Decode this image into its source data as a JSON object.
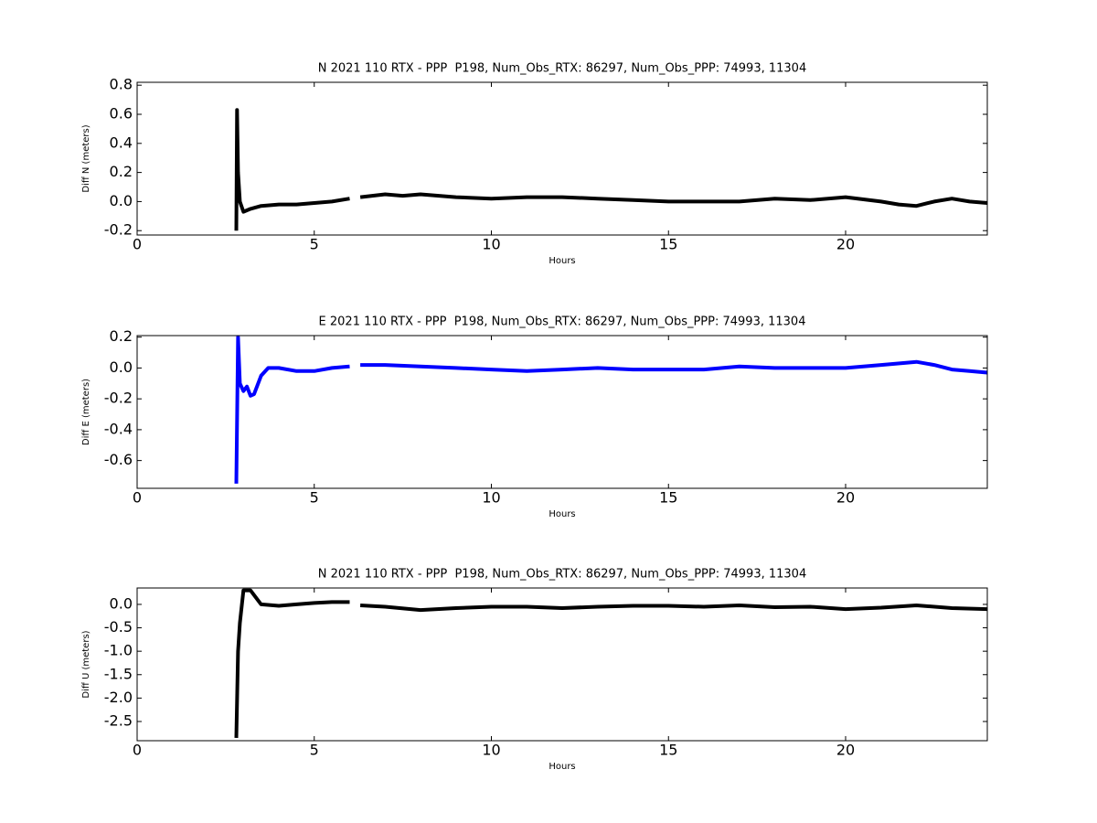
{
  "chart_data": [
    {
      "type": "line",
      "title": "N 2021 110 RTX - PPP  P198, Num_Obs_RTX: 86297, Num_Obs_PPP: 74993, 11304",
      "x_label": "Hours",
      "y_label": "Diff N (meters)",
      "color": "#000000",
      "x": [
        2.8,
        2.82,
        2.85,
        2.9,
        3.0,
        3.2,
        3.5,
        4,
        4.5,
        5,
        5.5,
        6.0,
        6.15,
        6.3,
        7,
        7.5,
        8,
        9,
        10,
        11,
        12,
        13,
        14,
        15,
        16,
        17,
        18,
        19,
        20,
        21,
        21.5,
        22,
        22.5,
        23,
        23.5,
        24
      ],
      "values": [
        -0.2,
        0.63,
        0.2,
        0.0,
        -0.07,
        -0.05,
        -0.03,
        -0.02,
        -0.02,
        -0.01,
        0.0,
        0.02,
        null,
        0.03,
        0.05,
        0.04,
        0.05,
        0.03,
        0.02,
        0.03,
        0.03,
        0.02,
        0.01,
        0.0,
        0.0,
        0.0,
        0.02,
        0.01,
        0.03,
        0.0,
        -0.02,
        -0.03,
        0.0,
        0.02,
        0.0,
        -0.01
      ],
      "xlim": [
        0,
        24
      ],
      "xticks": [
        0,
        5,
        10,
        15,
        20
      ],
      "ylim": [
        -0.23,
        0.82
      ],
      "yticks": [
        -0.2,
        {
          "value": 0,
          "label": "0.0"
        },
        0.2,
        0.4,
        0.6,
        0.8
      ]
    },
    {
      "type": "line",
      "title": "E 2021 110 RTX - PPP  P198, Num_Obs_RTX: 86297, Num_Obs_PPP: 74993, 11304",
      "x_label": "Hours",
      "y_label": "Diff E (meters)",
      "color": "#0000ff",
      "x": [
        2.8,
        2.85,
        2.9,
        3.0,
        3.1,
        3.2,
        3.3,
        3.5,
        3.7,
        4,
        4.5,
        5,
        5.5,
        6.0,
        6.15,
        6.3,
        7,
        8,
        9,
        10,
        11,
        12,
        13,
        14,
        15,
        16,
        17,
        18,
        19,
        20,
        21,
        22,
        22.5,
        23,
        23.5,
        24
      ],
      "values": [
        -0.75,
        0.2,
        -0.1,
        -0.15,
        -0.12,
        -0.18,
        -0.17,
        -0.05,
        0.0,
        0.0,
        -0.02,
        -0.02,
        0.0,
        0.01,
        null,
        0.02,
        0.02,
        0.01,
        0.0,
        -0.01,
        -0.02,
        -0.01,
        0.0,
        -0.01,
        -0.01,
        -0.01,
        0.01,
        0.0,
        0.0,
        0.0,
        0.02,
        0.04,
        0.02,
        -0.01,
        -0.02,
        -0.03
      ],
      "xlim": [
        0,
        24
      ],
      "xticks": [
        0,
        5,
        10,
        15,
        20
      ],
      "ylim": [
        -0.78,
        0.21
      ],
      "yticks": [
        -0.6,
        -0.4,
        -0.2,
        {
          "value": 0,
          "label": "0.0"
        },
        0.2
      ]
    },
    {
      "type": "line",
      "title": "N 2021 110 RTX - PPP  P198, Num_Obs_RTX: 86297, Num_Obs_PPP: 74993, 11304",
      "x_label": "Hours",
      "y_label": "Diff U (meters)",
      "color": "#000000",
      "x": [
        2.8,
        2.85,
        2.9,
        3.0,
        3.2,
        3.5,
        4,
        4.5,
        5,
        5.5,
        6.0,
        6.15,
        6.3,
        7,
        8,
        9,
        10,
        11,
        12,
        13,
        14,
        15,
        16,
        17,
        18,
        19,
        20,
        21,
        22,
        23,
        24
      ],
      "values": [
        -2.85,
        -1.0,
        -0.4,
        0.3,
        0.3,
        0.0,
        -0.03,
        0.0,
        0.03,
        0.05,
        0.05,
        null,
        -0.02,
        -0.05,
        -0.12,
        -0.08,
        -0.05,
        -0.05,
        -0.08,
        -0.05,
        -0.03,
        -0.03,
        -0.05,
        -0.02,
        -0.06,
        -0.05,
        -0.1,
        -0.07,
        -0.02,
        -0.08,
        -0.1
      ],
      "xlim": [
        0,
        24
      ],
      "xticks": [
        0,
        5,
        10,
        15,
        20
      ],
      "ylim": [
        -2.91,
        0.35
      ],
      "yticks": [
        -2.5,
        {
          "value": -2,
          "label": "-2.0"
        },
        -1.5,
        {
          "value": -1,
          "label": "-1.0"
        },
        -0.5,
        {
          "value": 0,
          "label": "0.0"
        }
      ]
    }
  ]
}
